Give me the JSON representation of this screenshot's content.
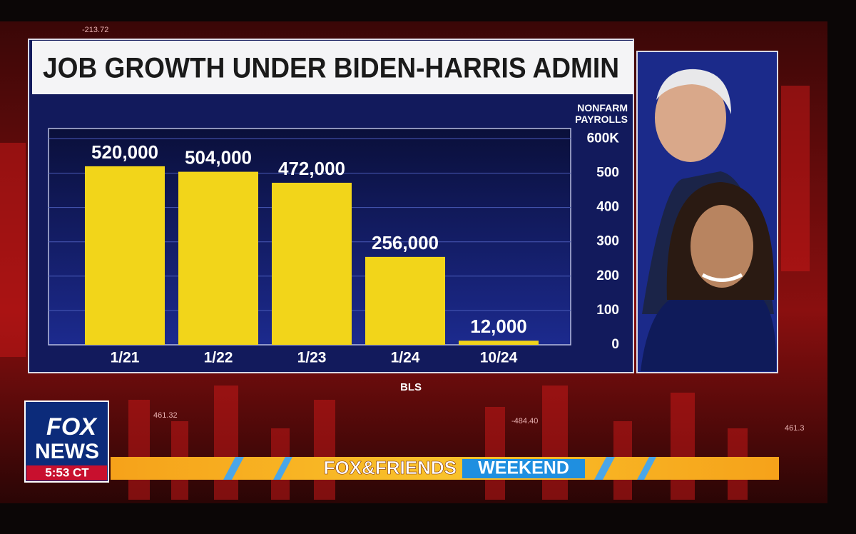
{
  "chart_data": {
    "type": "bar",
    "title": "JOB GROWTH UNDER BIDEN-HARRIS ADMIN",
    "y_label": "NONFARM PAYROLLS",
    "categories": [
      "1/21",
      "1/22",
      "1/23",
      "1/24",
      "10/24"
    ],
    "values": [
      520,
      504,
      472,
      256,
      12
    ],
    "value_labels": [
      "520,000",
      "504,000",
      "472,000",
      "256,000",
      "12,000"
    ],
    "color": "#f2d51a",
    "ylim": [
      0,
      630
    ],
    "yticks": [
      0,
      100,
      200,
      300,
      400,
      500,
      {
        "value": 600,
        "label": "600K"
      }
    ],
    "grid": true,
    "source": "BLS"
  },
  "broadcast": {
    "logo_top": "FOX",
    "logo_bottom": "NEWS",
    "time": "5:53 CT",
    "show_name": "FOX&FRIENDS",
    "show_suffix": "WEEKEND",
    "tickers": [
      "-213.72",
      "461.32",
      "-484.40",
      "461.3"
    ]
  }
}
